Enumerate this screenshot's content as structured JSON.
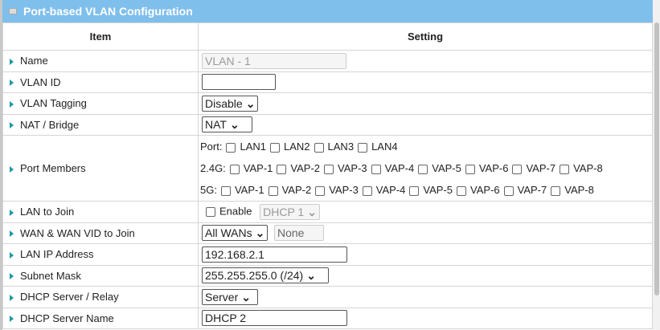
{
  "title": "Port-based VLAN Configuration",
  "columns": {
    "item": "Item",
    "setting": "Setting"
  },
  "rows": {
    "name": {
      "label": "Name",
      "value": "VLAN - 1"
    },
    "vlan_id": {
      "label": "VLAN ID",
      "value": ""
    },
    "tagging": {
      "label": "VLAN Tagging",
      "value": "Disable"
    },
    "nat": {
      "label": "NAT / Bridge",
      "value": "NAT"
    },
    "ports": {
      "label": "Port Members",
      "port_label": "Port:",
      "lan": [
        "LAN1",
        "LAN2",
        "LAN3",
        "LAN4"
      ],
      "g24_label": "2.4G:",
      "g5_label": "5G:",
      "vap": [
        "VAP-1",
        "VAP-2",
        "VAP-3",
        "VAP-4",
        "VAP-5",
        "VAP-6",
        "VAP-7",
        "VAP-8"
      ]
    },
    "lan_join": {
      "label": "LAN to Join",
      "enable": "Enable",
      "dhcp": "DHCP 1"
    },
    "wan": {
      "label": "WAN & WAN VID to Join",
      "value": "All WANs",
      "vid": "None"
    },
    "lan_ip": {
      "label": "LAN IP Address",
      "value": "192.168.2.1"
    },
    "subnet": {
      "label": "Subnet Mask",
      "value": "255.255.255.0 (/24)"
    },
    "dhcp_server": {
      "label": "DHCP Server / Relay",
      "value": "Server"
    },
    "dhcp_name": {
      "label": "DHCP Server Name",
      "value": "DHCP 2"
    }
  }
}
